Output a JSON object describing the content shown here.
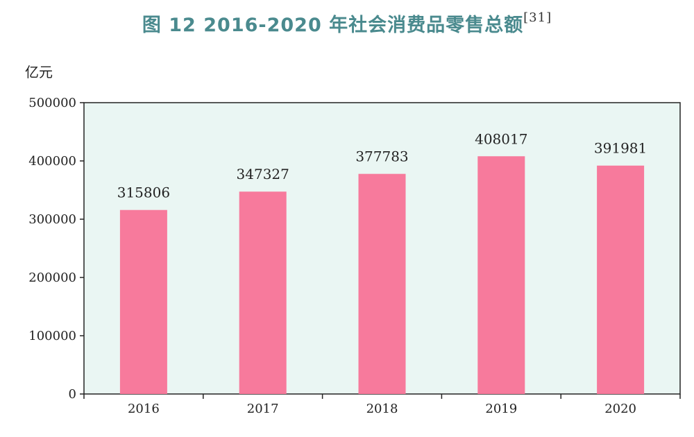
{
  "title": {
    "text": "图 12   2016-2020 年社会消费品零售总额",
    "superscript": "[31]"
  },
  "colors": {
    "title": "#4a8a8e",
    "plot_background": "#eaf6f3",
    "bar": "#f77a9c",
    "axis": "#222222"
  },
  "chart_data": {
    "type": "bar",
    "title": "图 12   2016-2020 年社会消费品零售总额",
    "ylabel": "亿元",
    "xlabel": "",
    "categories": [
      "2016",
      "2017",
      "2018",
      "2019",
      "2020"
    ],
    "values": [
      315806,
      347327,
      377783,
      408017,
      391981
    ],
    "data_labels": [
      "315806",
      "347327",
      "377783",
      "408017",
      "391981"
    ],
    "ylim": [
      0,
      500000
    ],
    "yticks": [
      0,
      100000,
      200000,
      300000,
      400000,
      500000
    ],
    "ytick_labels": [
      "0",
      "100000",
      "200000",
      "300000",
      "400000",
      "500000"
    ],
    "grid": false,
    "legend": "none"
  }
}
